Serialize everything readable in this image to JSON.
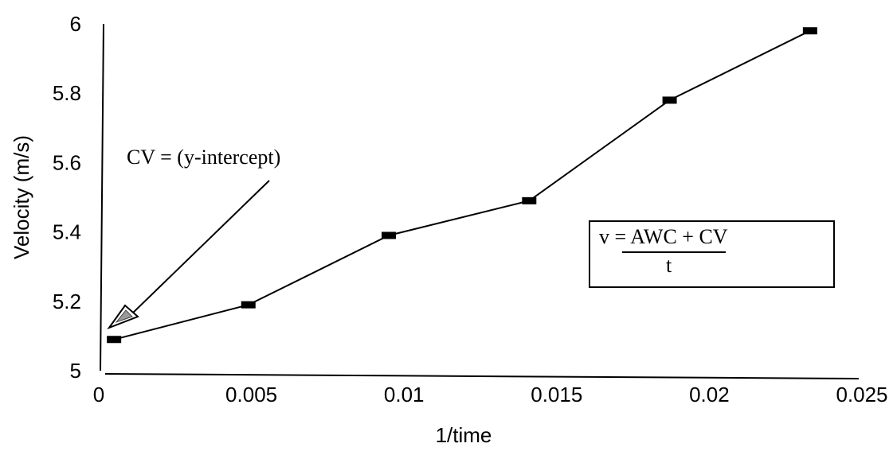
{
  "chart_data": {
    "type": "line",
    "title": "",
    "xlabel": "1/time",
    "ylabel": "Velocity (m/s)",
    "xlim": [
      0,
      0.025
    ],
    "ylim": [
      5,
      6
    ],
    "x_ticks": [
      "0",
      "0.005",
      "0.01",
      "0.015",
      "0.02",
      "0.025"
    ],
    "y_ticks": [
      "5",
      "5.2",
      "5.4",
      "5.6",
      "5.8",
      "6"
    ],
    "grid": false,
    "legend": "none",
    "series": [
      {
        "marker": "square",
        "color": "#000000",
        "points": [
          {
            "x": 0.0005,
            "y": 5.09
          },
          {
            "x": 0.0049,
            "y": 5.19
          },
          {
            "x": 0.0095,
            "y": 5.39
          },
          {
            "x": 0.0141,
            "y": 5.49
          },
          {
            "x": 0.0187,
            "y": 5.78
          },
          {
            "x": 0.0233,
            "y": 5.98
          }
        ]
      }
    ],
    "annotations": {
      "intercept_label": "CV = (y-intercept)",
      "equation_numerator": "v = AWC + CV",
      "equation_denominator": "t"
    }
  }
}
